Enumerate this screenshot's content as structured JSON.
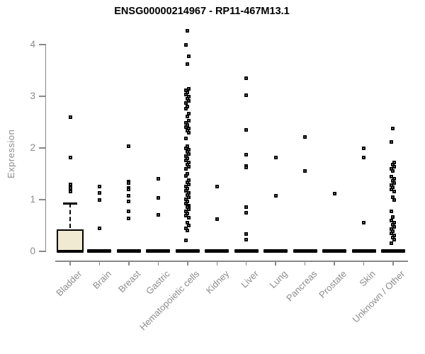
{
  "chart_data": {
    "type": "scatter",
    "subtype": "boxplot_with_outlier_points",
    "title": "ENSG00000214967 - RP11-467M13.1",
    "ylabel": "Expression",
    "xlabel": "",
    "ylim": [
      0,
      4.3
    ],
    "yticks": [
      0,
      1,
      2,
      3,
      4
    ],
    "grid": false,
    "legend": "none",
    "categories": [
      "Bladder",
      "Brain",
      "Breast",
      "Gastric",
      "Hematopoietic cells",
      "Kidney",
      "Liver",
      "Lung",
      "Pancreas",
      "Prostate",
      "Skin",
      "Unknown / Other"
    ],
    "series": [
      {
        "name": "Bladder",
        "values": [
          2.6,
          1.82,
          1.3,
          1.23,
          1.16
        ]
      },
      {
        "name": "Brain",
        "values": [
          1.26,
          1.13,
          1.0,
          0.44
        ]
      },
      {
        "name": "Breast",
        "values": [
          2.03,
          1.35,
          1.32,
          1.23,
          1.2,
          1.08,
          0.96,
          0.78,
          0.64
        ]
      },
      {
        "name": "Gastric",
        "values": [
          1.41,
          1.03,
          0.71
        ]
      },
      {
        "name": "Hematopoietic cells",
        "values": [
          4.27,
          4.0,
          3.78,
          3.62,
          3.15,
          3.11,
          3.07,
          3.03,
          2.99,
          2.95,
          2.91,
          2.87,
          2.8,
          2.76,
          2.66,
          2.61,
          2.53,
          2.49,
          2.45,
          2.41,
          2.37,
          2.33,
          2.29,
          2.18,
          2.04,
          2.0,
          1.96,
          1.92,
          1.88,
          1.84,
          1.8,
          1.76,
          1.72,
          1.68,
          1.64,
          1.6,
          1.5,
          1.46,
          1.37,
          1.33,
          1.29,
          1.25,
          1.21,
          1.17,
          1.13,
          1.09,
          1.05,
          1.01,
          0.97,
          0.93,
          0.89,
          0.85,
          0.81,
          0.77,
          0.73,
          0.69,
          0.65,
          0.55,
          0.5,
          0.45,
          0.4,
          0.21
        ]
      },
      {
        "name": "Kidney",
        "values": [
          1.26,
          0.62
        ]
      },
      {
        "name": "Liver",
        "values": [
          3.35,
          3.02,
          2.35,
          1.87,
          1.65,
          1.62,
          0.86,
          0.75,
          0.34,
          0.23
        ]
      },
      {
        "name": "Lung",
        "values": [
          1.82,
          1.08
        ]
      },
      {
        "name": "Pancreas",
        "values": [
          2.21,
          1.55
        ]
      },
      {
        "name": "Prostate",
        "values": [
          1.12
        ]
      },
      {
        "name": "Skin",
        "values": [
          1.99,
          1.82,
          0.56
        ]
      },
      {
        "name": "Unknown / Other",
        "values": [
          2.37,
          2.12,
          1.72,
          1.68,
          1.64,
          1.6,
          1.56,
          1.44,
          1.4,
          1.36,
          1.32,
          1.28,
          1.24,
          1.2,
          1.16,
          1.05,
          0.99,
          0.78,
          0.66,
          0.59,
          0.55,
          0.51,
          0.47,
          0.43,
          0.39,
          0.35,
          0.31,
          0.27,
          0.23,
          0.16
        ]
      }
    ],
    "boxes": [
      {
        "category": "Bladder",
        "whisker_low": 0.0,
        "q1": 0.0,
        "median": 0.01,
        "q3": 0.42,
        "whisker_high": 0.93
      }
    ],
    "zero_median_bar_categories": [
      "Bladder",
      "Brain",
      "Breast",
      "Gastric",
      "Hematopoietic cells",
      "Kidney",
      "Liver",
      "Lung",
      "Pancreas",
      "Prostate",
      "Skin",
      "Unknown / Other"
    ],
    "colors": {
      "background": "#ffffff",
      "title_text": "#000000",
      "axis": "#888888",
      "tick_label_text": "#8c8c8c",
      "marker": "#000000",
      "box_fill": "#f0ead2",
      "box_border": "#000000",
      "zero_bar": "#000000"
    }
  }
}
